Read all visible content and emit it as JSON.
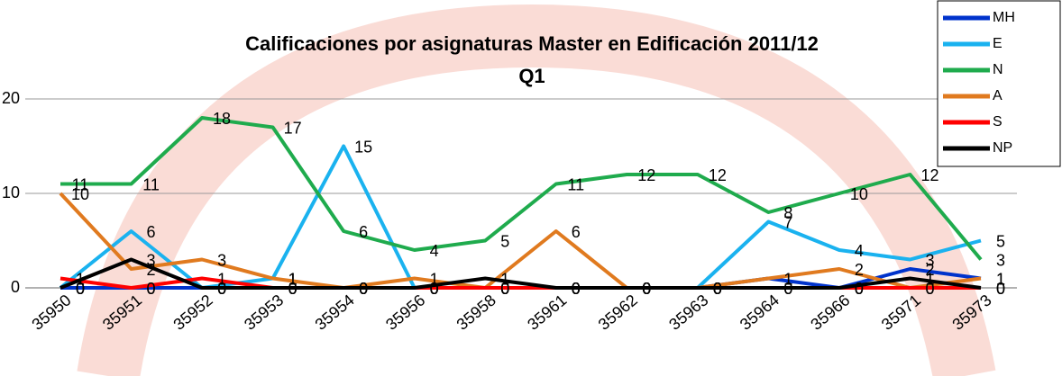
{
  "chart_data": {
    "type": "line",
    "title": [
      "Calificaciones por asignaturas Master en Edificación 2011/12",
      "Q1"
    ],
    "categories": [
      "35950",
      "35951",
      "35952",
      "35953",
      "35954",
      "35956",
      "35958",
      "35961",
      "35962",
      "35963",
      "35964",
      "35966",
      "35971",
      "35973"
    ],
    "series": [
      {
        "name": "MH",
        "color": "#0033cc",
        "values": [
          0,
          0,
          0,
          0,
          0,
          0,
          0,
          0,
          0,
          0,
          1,
          0,
          2,
          1
        ]
      },
      {
        "name": "E",
        "color": "#1ab2ef",
        "values": [
          0,
          6,
          0,
          1,
          15,
          0,
          0,
          0,
          0,
          0,
          7,
          4,
          3,
          5
        ]
      },
      {
        "name": "N",
        "color": "#1fab4d",
        "values": [
          11,
          11,
          18,
          17,
          6,
          4,
          5,
          11,
          12,
          12,
          8,
          10,
          12,
          3
        ]
      },
      {
        "name": "A",
        "color": "#e07a1f",
        "values": [
          10,
          2,
          3,
          1,
          0,
          1,
          0,
          6,
          0,
          0,
          1,
          2,
          0,
          1
        ]
      },
      {
        "name": "S",
        "color": "#ff0000",
        "values": [
          1,
          0,
          1,
          0,
          0,
          0,
          0,
          0,
          0,
          0,
          0,
          0,
          0,
          0
        ]
      },
      {
        "name": "NP",
        "color": "#000000",
        "values": [
          0,
          3,
          0,
          0,
          0,
          0,
          1,
          0,
          0,
          0,
          0,
          0,
          1,
          0
        ]
      }
    ],
    "ylim": [
      0,
      20
    ],
    "yticks": [
      0,
      10,
      20
    ],
    "grid": true,
    "legend": "top-right"
  }
}
